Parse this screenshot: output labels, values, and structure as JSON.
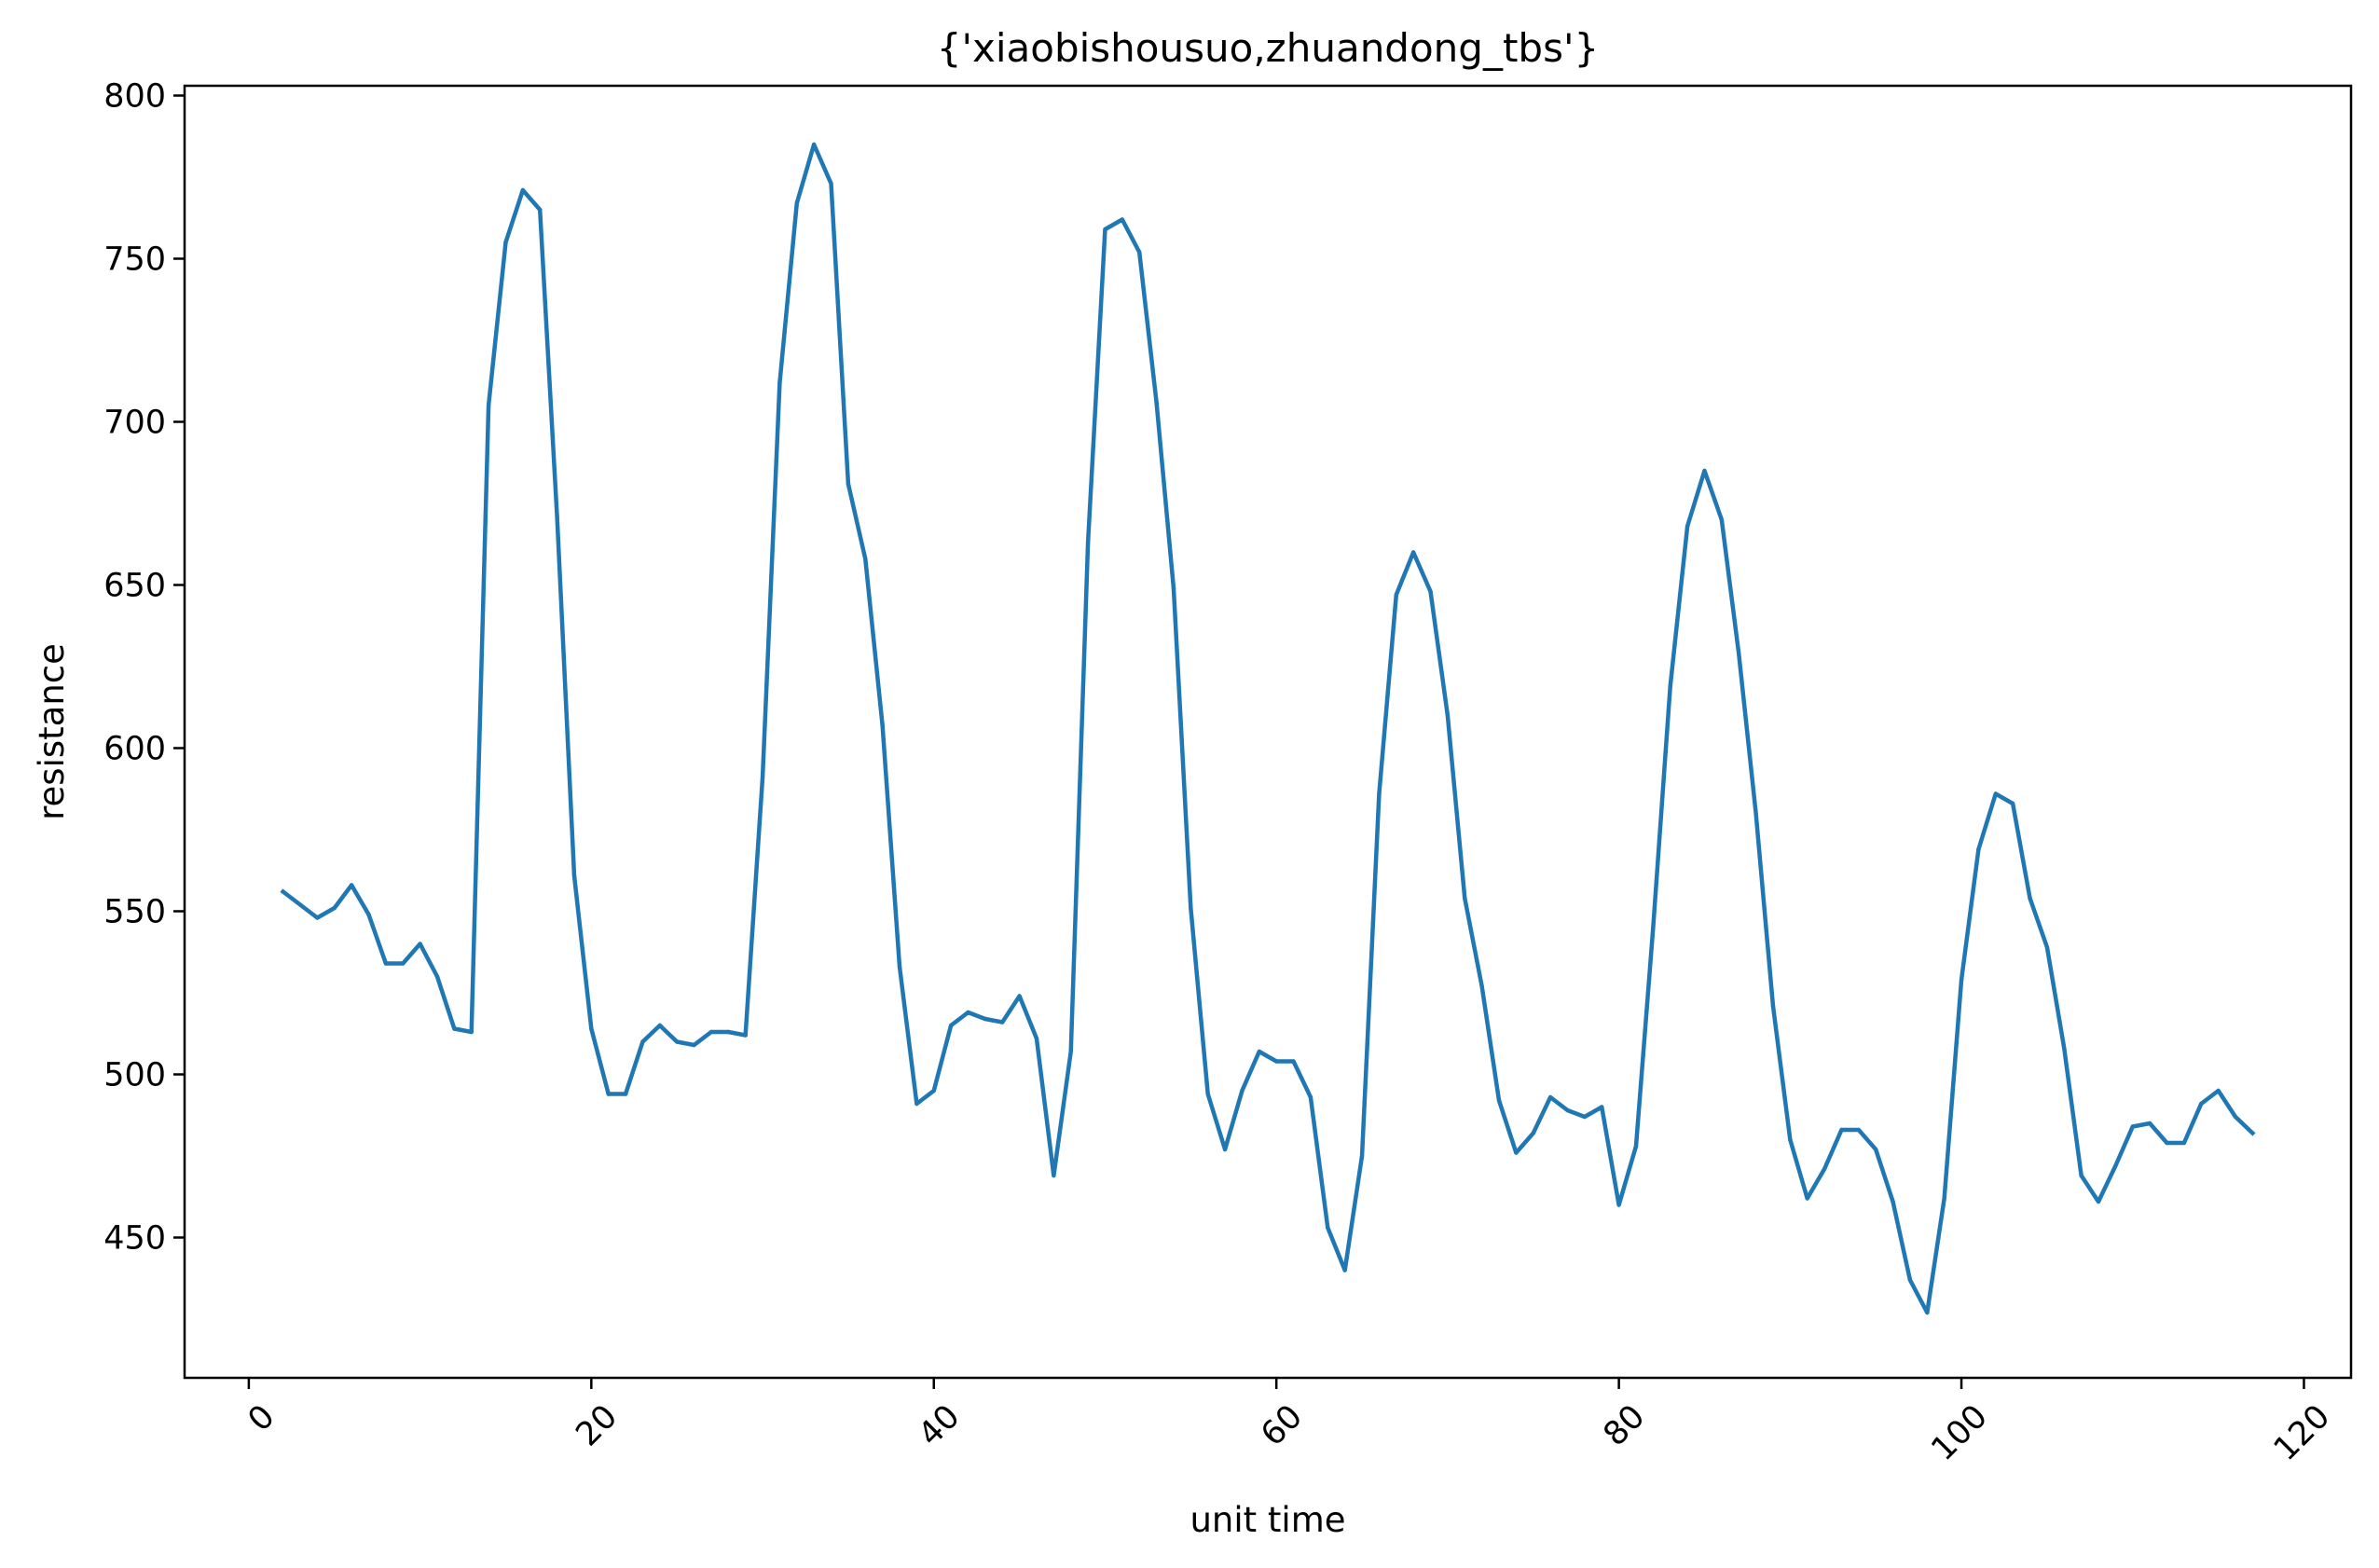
{
  "chart_data": {
    "type": "line",
    "title": "{'xiaobishousuo,zhuandong_tbs'}",
    "xlabel": "unit time",
    "ylabel": "resistance",
    "xlim": [
      -3.75,
      122.75
    ],
    "ylim": [
      407,
      803
    ],
    "xticks": [
      0,
      20,
      40,
      60,
      80,
      100,
      120
    ],
    "xtick_labels": [
      "0",
      "20",
      "40",
      "60",
      "80",
      "100",
      "120"
    ],
    "xtick_rotation": 45,
    "yticks": [
      450,
      500,
      550,
      600,
      650,
      700,
      750,
      800
    ],
    "ytick_labels": [
      "450",
      "500",
      "550",
      "600",
      "650",
      "700",
      "750",
      "800"
    ],
    "grid": false,
    "legend": "none",
    "series": [
      {
        "color": "#1f77b4",
        "x": [
          2,
          3,
          4,
          5,
          6,
          7,
          8,
          9,
          10,
          11,
          12,
          13,
          14,
          15,
          16,
          17,
          18,
          19,
          20,
          21,
          22,
          23,
          24,
          25,
          26,
          27,
          28,
          29,
          30,
          31,
          32,
          33,
          34,
          35,
          36,
          37,
          38,
          39,
          40,
          41,
          42,
          43,
          44,
          45,
          46,
          47,
          48,
          49,
          50,
          51,
          52,
          53,
          54,
          55,
          56,
          57,
          58,
          59,
          60,
          61,
          62,
          63,
          64,
          65,
          66,
          67,
          68,
          69,
          70,
          71,
          72,
          73,
          74,
          75,
          76,
          77,
          78,
          79,
          80,
          81,
          82,
          83,
          84,
          85,
          86,
          87,
          88,
          89,
          90,
          91,
          92,
          93,
          94,
          95,
          96,
          97,
          98,
          99,
          100,
          101,
          102,
          103,
          104,
          105,
          106,
          107,
          108,
          109,
          110,
          111,
          112,
          113,
          114,
          115,
          116,
          117
        ],
        "values": [
          556,
          552,
          548,
          551,
          558,
          549,
          534,
          534,
          540,
          530,
          514,
          513,
          705,
          755,
          771,
          765,
          671,
          561,
          514,
          494,
          494,
          510,
          515,
          510,
          509,
          513,
          513,
          512,
          591,
          712,
          767,
          785,
          773,
          681,
          658,
          607,
          533,
          491,
          495,
          515,
          519,
          517,
          516,
          524,
          511,
          469,
          507,
          663,
          759,
          762,
          752,
          706,
          649,
          551,
          494,
          477,
          495,
          507,
          504,
          504,
          493,
          453,
          440,
          475,
          586,
          647,
          660,
          648,
          610,
          554,
          527,
          492,
          476,
          482,
          493,
          489,
          487,
          490,
          460,
          478,
          545,
          619,
          668,
          685,
          670,
          629,
          580,
          521,
          480,
          462,
          471,
          483,
          483,
          477,
          461,
          437,
          427,
          462,
          529,
          569,
          586,
          583,
          554,
          539,
          508,
          469,
          461,
          472,
          484,
          485,
          479,
          479,
          491,
          495,
          487,
          482
        ]
      }
    ]
  }
}
